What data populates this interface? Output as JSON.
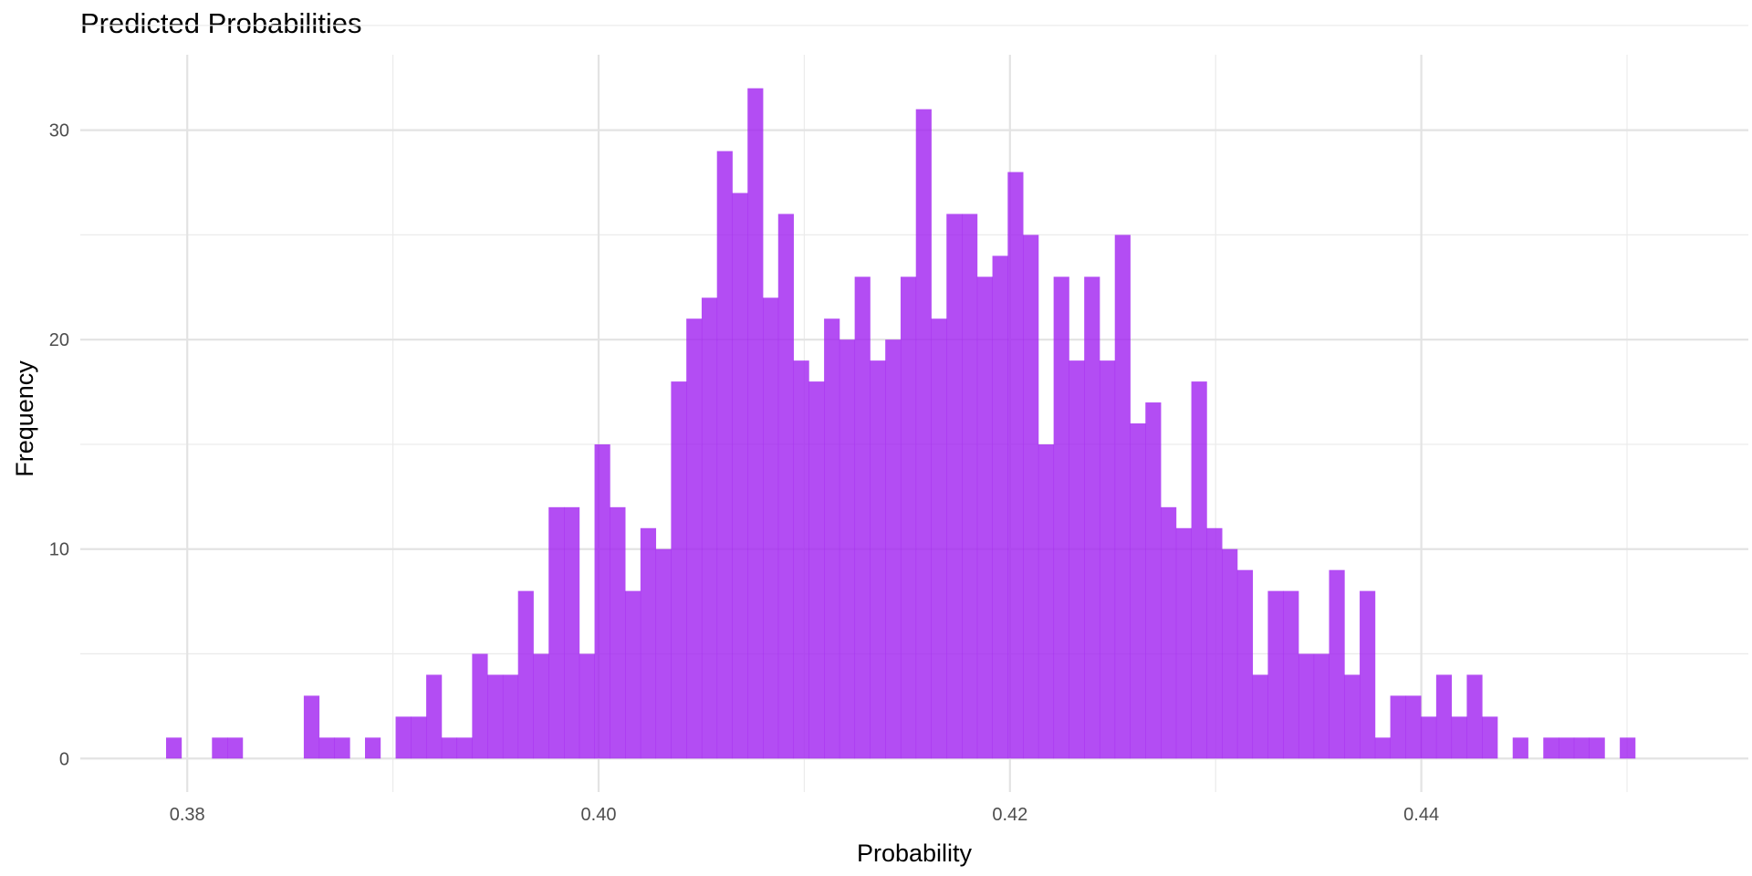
{
  "chart_data": {
    "type": "bar",
    "subtype": "histogram",
    "title": "Predicted Probabilities",
    "xlabel": "Probability",
    "ylabel": "Frequency",
    "bar_color": "#a020f0",
    "bar_opacity": 0.8,
    "grid": true,
    "legend": "none",
    "xlim": [
      0.3748,
      0.4559
    ],
    "ylim": [
      -1.6,
      33.6
    ],
    "x_ticks": [
      0.38,
      0.4,
      0.42,
      0.44
    ],
    "x_tick_labels": [
      "0.38",
      "0.40",
      "0.42",
      "0.44"
    ],
    "y_ticks": [
      0,
      10,
      20,
      30
    ],
    "y_tick_labels": [
      "0",
      "10",
      "20",
      "30"
    ],
    "bin_start": 0.37897,
    "bin_width": 0.000744,
    "counts": [
      1,
      0,
      0,
      1,
      1,
      0,
      0,
      0,
      0,
      3,
      1,
      1,
      0,
      1,
      0,
      2,
      2,
      4,
      1,
      1,
      5,
      4,
      4,
      8,
      5,
      12,
      12,
      5,
      15,
      12,
      8,
      11,
      10,
      18,
      21,
      22,
      29,
      27,
      32,
      22,
      26,
      19,
      18,
      21,
      20,
      23,
      19,
      20,
      23,
      31,
      21,
      26,
      26,
      23,
      24,
      28,
      25,
      15,
      23,
      19,
      23,
      19,
      25,
      16,
      17,
      12,
      11,
      18,
      11,
      10,
      9,
      4,
      8,
      8,
      5,
      5,
      9,
      4,
      8,
      1,
      3,
      3,
      2,
      4,
      2,
      4,
      2,
      0,
      1,
      0,
      1,
      1,
      1,
      1,
      0,
      1
    ]
  }
}
